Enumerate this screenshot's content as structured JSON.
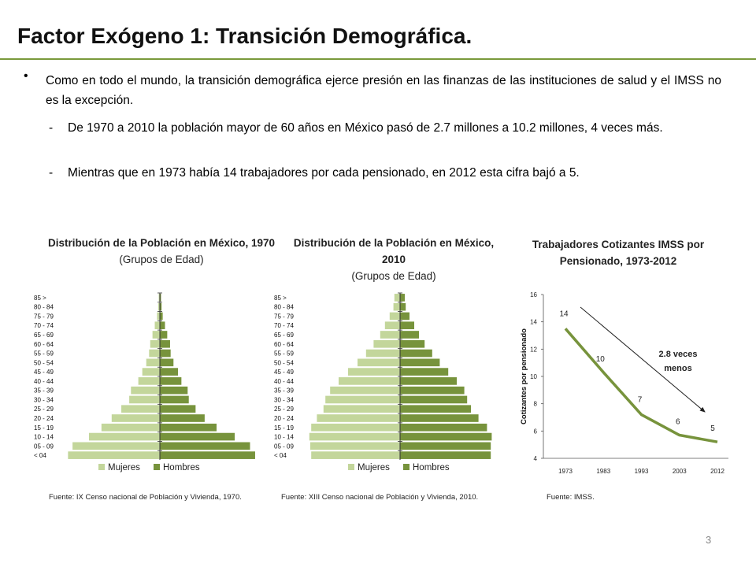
{
  "slide": {
    "title": "Factor Exógeno 1: Transición Demográfica.",
    "bullet": "Como en todo el mundo, la transición demográfica ejerce presión en las finanzas de las instituciones de salud y el IMSS no es la excepción.",
    "subbullets": [
      "De 1970 a 2010 la población mayor de 60 años en México pasó de 2.7 millones a 10.2 millones, 4 veces más.",
      "Mientras que en 1973 había 14 trabajadores por cada pensionado, en 2012 esta cifra bajó a 5."
    ],
    "dash": "-",
    "bullet_marker": "•",
    "page_number": "3"
  },
  "colors": {
    "mujeres": "#c3d69b",
    "hombres": "#77933c",
    "line": "#77933c",
    "accent": "#7a9a3c"
  },
  "chart_data": [
    {
      "type": "bar",
      "orientation": "horizontal-pyramid",
      "title": "Distribución de la Población en México, 1970",
      "subtitle": "(Grupos de Edad)",
      "categories": [
        "< 04",
        "05 - 09",
        "10 - 14",
        "15 - 19",
        "20 - 24",
        "25 - 29",
        "30 - 34",
        "35 - 39",
        "40 - 44",
        "45 - 49",
        "50 - 54",
        "55 - 59",
        "60 - 64",
        "65 - 69",
        "70 - 74",
        "75 - 79",
        "80 - 84",
        "85 >"
      ],
      "series": [
        {
          "name": "Mujeres",
          "values": [
            16.2,
            15.4,
            12.5,
            10.3,
            8.5,
            6.8,
            5.4,
            5.1,
            3.8,
            3.1,
            2.4,
            1.9,
            1.7,
            1.3,
            0.9,
            0.5,
            0.3,
            0.2
          ]
        },
        {
          "name": "Hombres",
          "values": [
            16.8,
            15.9,
            13.2,
            10.0,
            7.9,
            6.3,
            5.1,
            4.9,
            3.8,
            3.2,
            2.4,
            1.9,
            1.8,
            1.3,
            0.9,
            0.5,
            0.3,
            0.2
          ]
        }
      ],
      "legend_position": "bottom",
      "source": "Fuente: IX Censo nacional de Población y Vivienda, 1970."
    },
    {
      "type": "bar",
      "orientation": "horizontal-pyramid",
      "title": "Distribución de la Población en México, 2010",
      "subtitle": "(Grupos de Edad)",
      "categories": [
        "< 04",
        "05 - 09",
        "10 - 14",
        "15 - 19",
        "20 - 24",
        "25 - 29",
        "30 - 34",
        "35 - 39",
        "40 - 44",
        "45 - 49",
        "50 - 54",
        "55 - 59",
        "60 - 64",
        "65 - 69",
        "70 - 74",
        "75 - 79",
        "80 - 84",
        "85 >"
      ],
      "series": [
        {
          "name": "Mujeres",
          "values": [
            9.4,
            9.5,
            9.6,
            9.4,
            8.8,
            8.1,
            7.9,
            7.4,
            6.5,
            5.5,
            4.5,
            3.6,
            2.8,
            2.1,
            1.6,
            1.1,
            0.7,
            0.6
          ]
        },
        {
          "name": "Hombres",
          "values": [
            9.6,
            9.6,
            9.7,
            9.2,
            8.3,
            7.5,
            7.1,
            6.8,
            6.0,
            5.1,
            4.2,
            3.4,
            2.6,
            2.0,
            1.5,
            1.0,
            0.6,
            0.5
          ]
        }
      ],
      "legend_position": "bottom",
      "source": "Fuente: XIII Censo nacional de Población y Vivienda, 2010."
    },
    {
      "type": "line",
      "title": "Trabajadores Cotizantes IMSS por Pensionado, 1973-2012",
      "ylabel": "Cotizantes por pensionado",
      "xlabel": "",
      "x": [
        "1973",
        "1983",
        "1993",
        "2003",
        "2012"
      ],
      "series": [
        {
          "values": [
            13.5,
            10.3,
            7.2,
            5.7,
            5.2
          ]
        }
      ],
      "data_labels": [
        "14",
        "10",
        "7",
        "6",
        "5"
      ],
      "ylim": [
        4,
        16
      ],
      "yticks": [
        "4",
        "6",
        "8",
        "10",
        "12",
        "14",
        "16"
      ],
      "annotation": {
        "text_line1": "2.8 veces",
        "text_line2": "menos"
      },
      "source": "Fuente: IMSS."
    }
  ]
}
